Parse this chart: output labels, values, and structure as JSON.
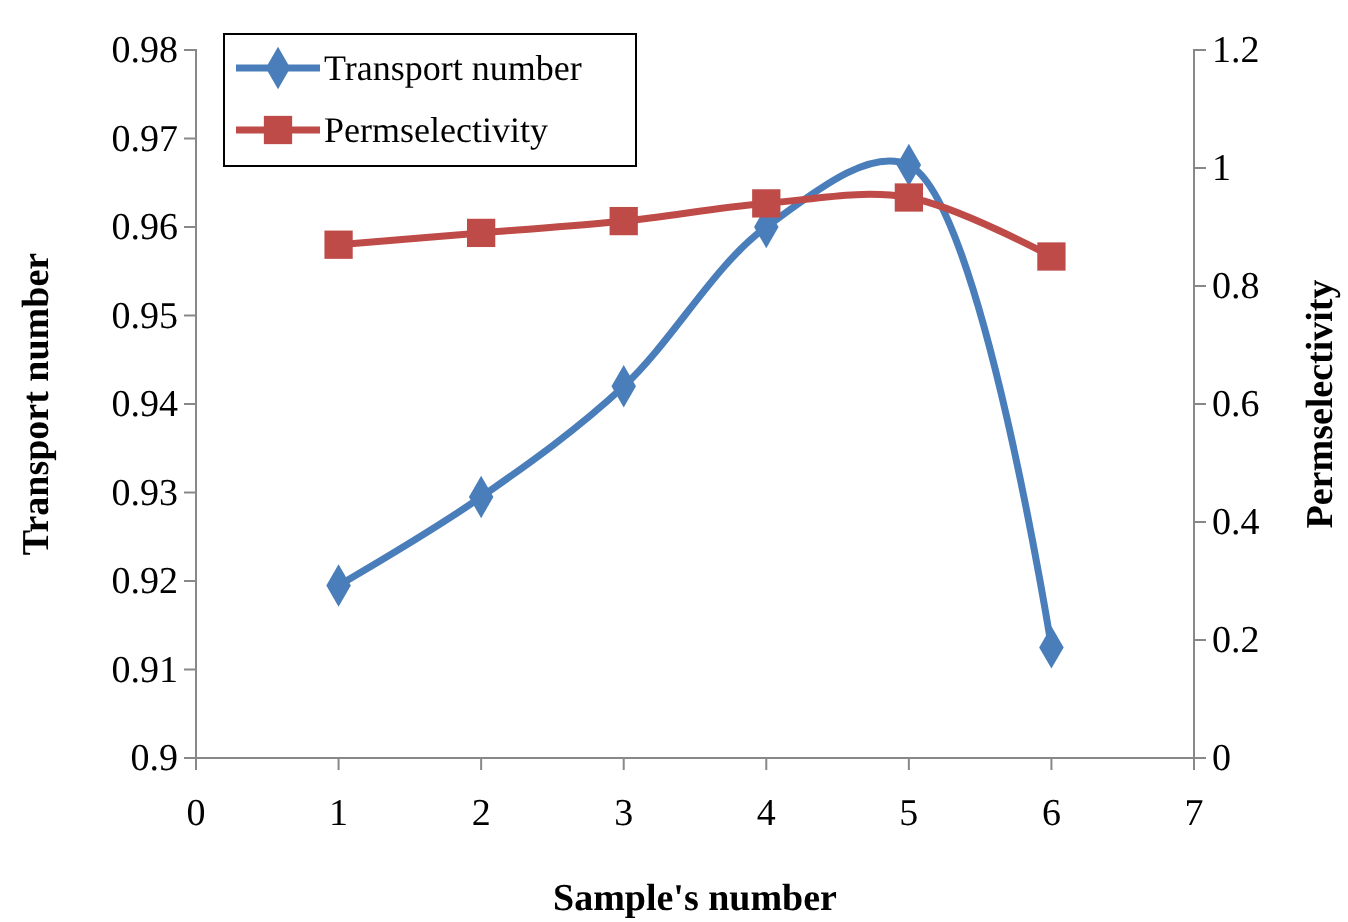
{
  "chart_data": {
    "type": "line",
    "xlabel": "Sample's number",
    "ylabel": "Transport number",
    "y2label": "Permselectivity",
    "x": [
      1,
      2,
      3,
      4,
      5,
      6
    ],
    "series": [
      {
        "name": "Transport number",
        "color": "#4a7ebb",
        "marker": "diamond",
        "values": [
          0.9195,
          0.9295,
          0.942,
          0.96,
          0.967,
          0.9125
        ]
      },
      {
        "name": "Permselectivity",
        "color": "#be4b48",
        "marker": "square",
        "axis": "y2",
        "values": [
          0.87,
          0.89,
          0.91,
          0.94,
          0.95,
          0.85
        ]
      }
    ],
    "xlim": [
      0,
      7
    ],
    "xticks": [
      0,
      1,
      2,
      3,
      4,
      5,
      6,
      7
    ],
    "ylim": [
      0.9,
      0.98
    ],
    "yticks": [
      {
        "value": 0.9,
        "label": "0.9"
      },
      0.91,
      0.92,
      0.93,
      0.94,
      0.95,
      0.96,
      0.97,
      0.98
    ],
    "y2lim": [
      0,
      1.2
    ],
    "y2ticks": [
      0,
      0.2,
      0.4,
      0.6,
      0.8,
      1,
      1.2
    ],
    "grid": false,
    "legend": "top left",
    "line_style": "solid"
  }
}
